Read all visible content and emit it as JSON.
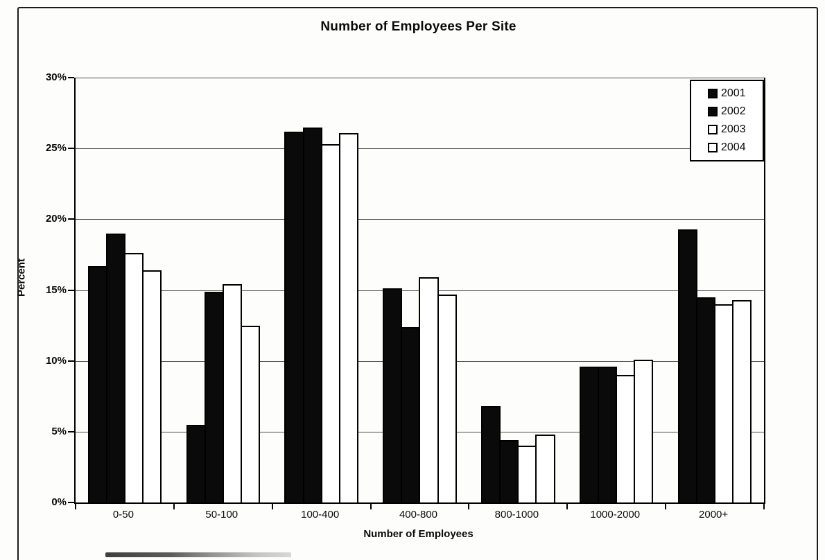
{
  "chart_data": {
    "type": "bar",
    "title": "Number of Employees Per Site",
    "xlabel": "Number of Employees",
    "ylabel": "Percent",
    "ylim": [
      0,
      30
    ],
    "ytick_step": 5,
    "ytick_labels": [
      "0%",
      "5%",
      "10%",
      "15%",
      "20%",
      "25%",
      "30%"
    ],
    "grid": true,
    "legend_position": "top-right",
    "categories": [
      "0-50",
      "50-100",
      "100-400",
      "400-800",
      "800-1000",
      "1000-2000",
      "2000+"
    ],
    "series": [
      {
        "name": "2001",
        "fill": "#0a0a0a",
        "values": [
          16.7,
          5.5,
          26.2,
          15.1,
          6.8,
          9.6,
          19.3
        ]
      },
      {
        "name": "2002",
        "fill": "#0a0a0a",
        "values": [
          19.0,
          14.9,
          26.5,
          12.4,
          4.4,
          9.6,
          14.5
        ]
      },
      {
        "name": "2003",
        "fill": "#ffffff",
        "values": [
          17.6,
          15.4,
          25.3,
          15.9,
          4.0,
          9.0,
          14.0
        ]
      },
      {
        "name": "2004",
        "fill": "#ffffff",
        "values": [
          16.4,
          12.5,
          26.1,
          14.7,
          4.8,
          10.1,
          14.3
        ]
      }
    ],
    "colors": {
      "bar_border": "#000000",
      "grid": "#4a4a4a",
      "axis": "#000000",
      "background": "#fdfdfb"
    }
  }
}
